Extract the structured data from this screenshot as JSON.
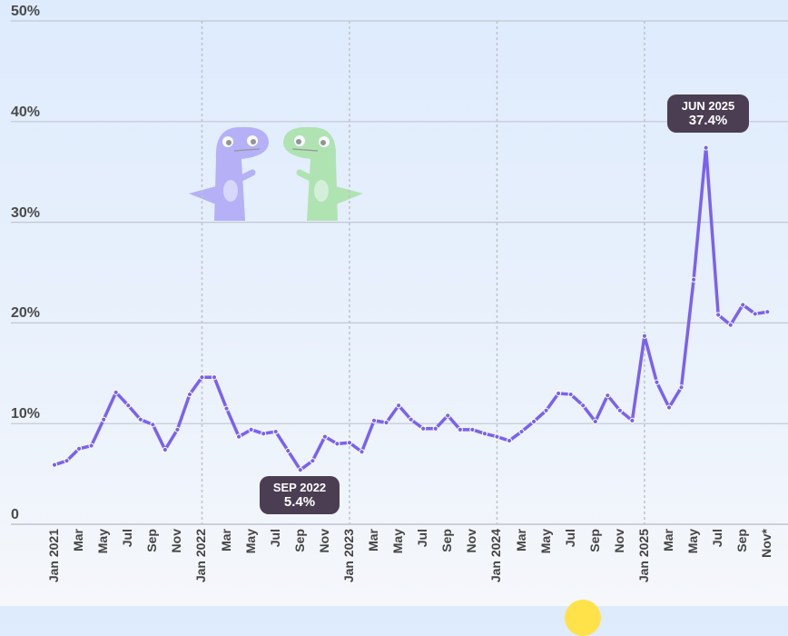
{
  "chart_data": {
    "type": "line",
    "title": "",
    "xlabel": "",
    "ylabel": "",
    "ylim": [
      0,
      50
    ],
    "y_ticks": [
      "0",
      "10%",
      "20%",
      "30%",
      "40%",
      "50%"
    ],
    "x_tick_labels": [
      "Jan 2021",
      "Mar",
      "May",
      "Jul",
      "Sep",
      "Nov",
      "Jan 2022",
      "Mar",
      "May",
      "Jul",
      "Sep",
      "Nov",
      "Jan 2023",
      "Mar",
      "May",
      "Jul",
      "Sep",
      "Nov",
      "Jan 2024",
      "Mar",
      "May",
      "Jul",
      "Sep",
      "Nov",
      "Jan 2025",
      "Mar",
      "May",
      "Jul",
      "Sep",
      "Nov*"
    ],
    "grid": true,
    "year_separators": [
      "Jan 2022",
      "Jan 2023",
      "Jan 2024",
      "Jan 2025"
    ],
    "color": "#7b61f0",
    "series": [
      {
        "x_start": "Jan 2021",
        "x_end": "Nov 2025",
        "frequency": "monthly",
        "values": [
          5.9,
          6.3,
          7.5,
          7.8,
          10.4,
          13.1,
          11.8,
          10.4,
          9.9,
          7.4,
          9.4,
          12.9,
          14.6,
          14.6,
          11.5,
          8.7,
          9.4,
          9.0,
          9.2,
          7.3,
          5.4,
          6.3,
          8.7,
          8.0,
          8.1,
          7.2,
          10.3,
          10.1,
          11.8,
          10.4,
          9.5,
          9.5,
          10.8,
          9.4,
          9.4,
          9.0,
          8.7,
          8.3,
          9.2,
          10.2,
          11.3,
          13.0,
          12.9,
          11.8,
          10.2,
          12.8,
          11.3,
          10.3,
          18.7,
          14.1,
          11.6,
          13.6,
          24.3,
          37.4,
          20.8,
          19.8,
          21.8,
          20.9,
          21.1
        ]
      }
    ],
    "annotations": [
      {
        "label": "JUN 2025",
        "value": "37.4%"
      },
      {
        "label": "SEP 2022",
        "value": "5.4%"
      }
    ]
  },
  "mascot": {
    "colors": [
      "#a79cf6",
      "#9fe09a"
    ]
  },
  "accent_colors": {
    "line": "#7b61f0",
    "tooltip": "#4b3e53"
  }
}
